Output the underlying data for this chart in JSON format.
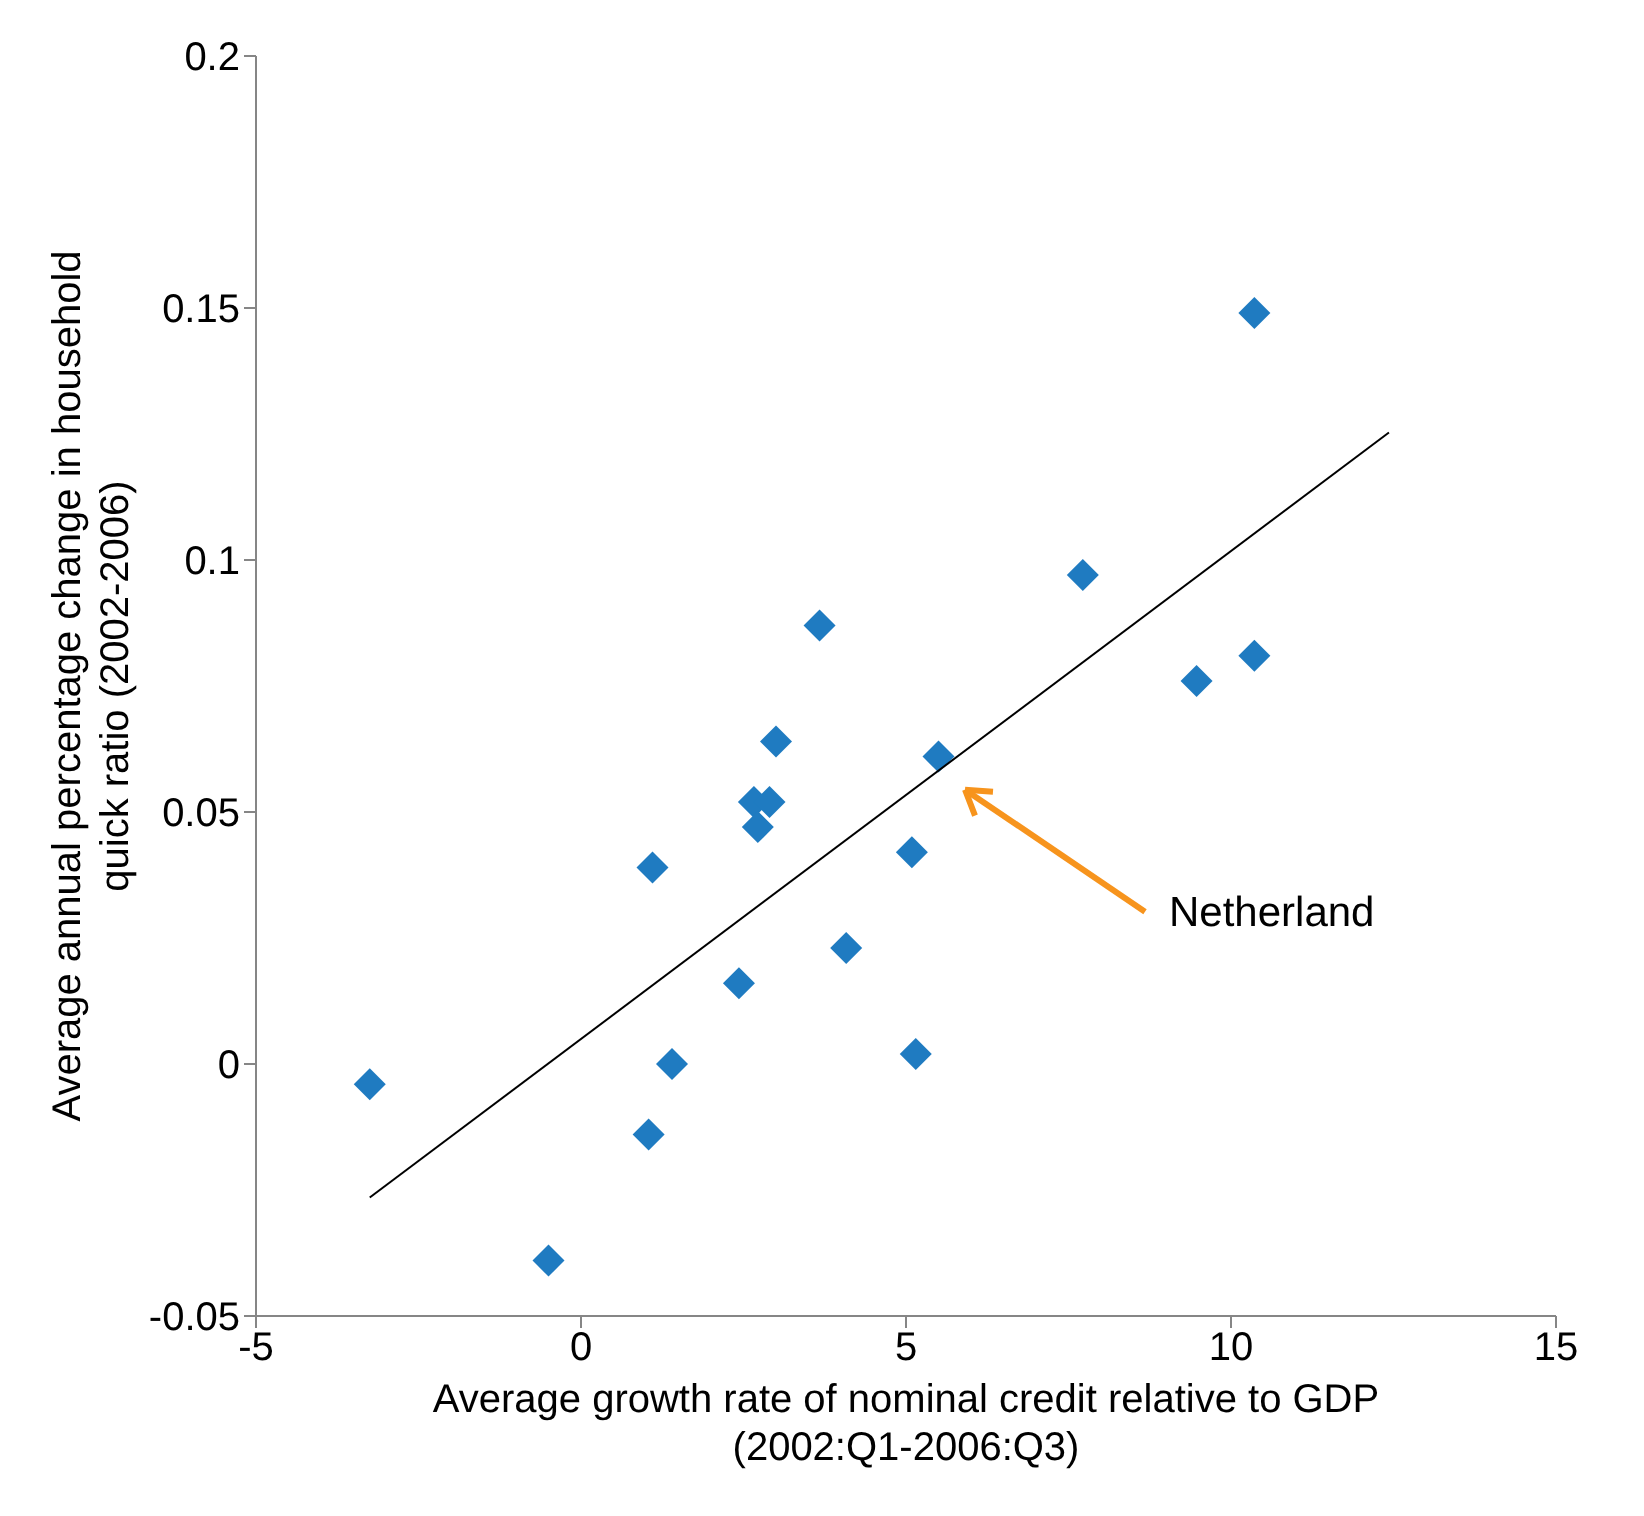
{
  "chart_data": {
    "type": "scatter",
    "xlabel": "Average growth rate of nominal credit relative to GDP (2002:Q1-2006:Q3)",
    "ylabel": "Average annual percentage change in household quick ratio (2002-2006)",
    "xlim": [
      -5,
      15
    ],
    "xticks": [
      -5,
      0,
      5,
      10,
      15
    ],
    "ylim": [
      -0.05,
      0.2
    ],
    "yticks": [
      -0.05,
      0,
      0.05,
      0.1,
      0.15,
      0.2
    ],
    "marker": "diamond",
    "series": [
      {
        "color": "#1f7bc1",
        "x": [
          -3.25,
          -0.5,
          1.04,
          1.1,
          1.4,
          2.43,
          2.66,
          2.72,
          2.9,
          3.0,
          3.67,
          4.08,
          5.09,
          5.15,
          5.5,
          7.72,
          9.47,
          10.36,
          10.36
        ],
        "values": [
          -0.004,
          -0.039,
          -0.014,
          0.039,
          0.0,
          0.016,
          0.052,
          0.047,
          0.052,
          0.064,
          0.087,
          0.023,
          0.042,
          0.002,
          0.061,
          0.097,
          0.076,
          0.081,
          0.149
        ]
      },
      {
        "type": "line",
        "color": "#000000",
        "x": [
          -3.25,
          12.43
        ],
        "values": [
          -0.0265,
          0.1253
        ],
        "marker": "none"
      }
    ],
    "annotations": [
      "Netherland"
    ]
  }
}
